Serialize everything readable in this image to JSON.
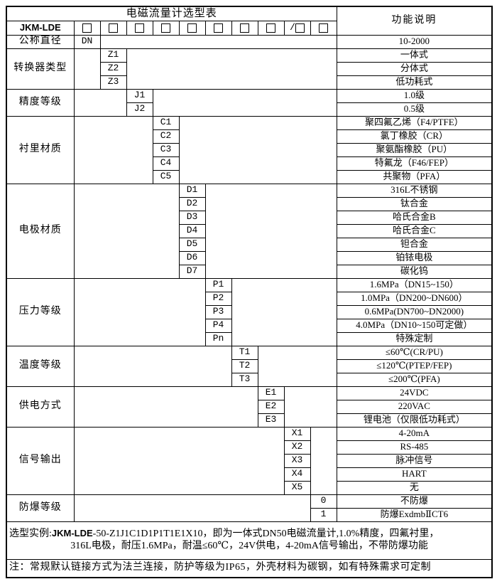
{
  "title": "电磁流量计选型表",
  "function_header": "功能说明",
  "model_row": {
    "prefix": "JKM-LDE",
    "slots": [
      "",
      "",
      "",
      "",
      "",
      "",
      "",
      "",
      "/",
      ""
    ]
  },
  "sections": [
    {
      "label": "公称直径",
      "col": 1,
      "codes": [
        {
          "code": "DN",
          "desc": "10-2000"
        }
      ]
    },
    {
      "label": "转换器类型",
      "col": 2,
      "codes": [
        {
          "code": "Z1",
          "desc": "一体式"
        },
        {
          "code": "Z2",
          "desc": "分体式"
        },
        {
          "code": "Z3",
          "desc": "低功耗式"
        }
      ]
    },
    {
      "label": "精度等级",
      "col": 3,
      "codes": [
        {
          "code": "J1",
          "desc": "1.0级"
        },
        {
          "code": "J2",
          "desc": "0.5级"
        }
      ]
    },
    {
      "label": "衬里材质",
      "col": 4,
      "codes": [
        {
          "code": "C1",
          "desc": "聚四氟乙烯（F4/PTFE）"
        },
        {
          "code": "C2",
          "desc": "氯丁橡胶（CR）"
        },
        {
          "code": "C3",
          "desc": "聚氨酯橡胶（PU）"
        },
        {
          "code": "C4",
          "desc": "特氟龙（F46/FEP）"
        },
        {
          "code": "C5",
          "desc": "共聚物（PFA）"
        }
      ]
    },
    {
      "label": "电极材质",
      "col": 5,
      "codes": [
        {
          "code": "D1",
          "desc": "316L不锈钢"
        },
        {
          "code": "D2",
          "desc": "钛合金"
        },
        {
          "code": "D3",
          "desc": "哈氏合金B"
        },
        {
          "code": "D4",
          "desc": "哈氏合金C"
        },
        {
          "code": "D5",
          "desc": "钽合金"
        },
        {
          "code": "D6",
          "desc": "铂铱电极"
        },
        {
          "code": "D7",
          "desc": "碳化钨"
        }
      ]
    },
    {
      "label": "压力等级",
      "col": 6,
      "codes": [
        {
          "code": "P1",
          "desc": "1.6MPa（DN15~150）"
        },
        {
          "code": "P2",
          "desc": "1.0MPa（DN200~DN600）"
        },
        {
          "code": "P3",
          "desc": "0.6MPa(DN700~DN2000)"
        },
        {
          "code": "P4",
          "desc": "4.0MPa（DN10~150可定做）"
        },
        {
          "code": "Pn",
          "desc": "特殊定制"
        }
      ]
    },
    {
      "label": "温度等级",
      "col": 7,
      "codes": [
        {
          "code": "T1",
          "desc": "≤60℃(CR/PU)"
        },
        {
          "code": "T2",
          "desc": "≤120℃(PTEP/FEP)"
        },
        {
          "code": "T3",
          "desc": "≤200℃(PFA)"
        }
      ]
    },
    {
      "label": "供电方式",
      "col": 8,
      "codes": [
        {
          "code": "E1",
          "desc": "24VDC"
        },
        {
          "code": "E2",
          "desc": "220VAC"
        },
        {
          "code": "E3",
          "desc": "锂电池（仅限低功耗式）"
        }
      ]
    },
    {
      "label": "信号输出",
      "col": 9,
      "codes": [
        {
          "code": "X1",
          "desc": "4-20mA"
        },
        {
          "code": "X2",
          "desc": "RS-485"
        },
        {
          "code": "X3",
          "desc": "脉冲信号"
        },
        {
          "code": "X4",
          "desc": "HART"
        },
        {
          "code": "X5",
          "desc": "无"
        }
      ]
    },
    {
      "label": "防爆等级",
      "col": 10,
      "codes": [
        {
          "code": "0",
          "desc": "不防爆"
        },
        {
          "code": "1",
          "desc": "防爆ExdmbⅡCT6"
        }
      ]
    }
  ],
  "example": {
    "label": "选型实例:",
    "model": "JKM-LDE",
    "line1_rest": "-50-Z1J1C1D1P1T1E1X10，即为一体式DN50电磁流量计,1.0%精度，四氟衬里，",
    "line2": "316L电极，耐压1.6MPa，耐温≤60℃，24V供电，4-20mA信号输出，不带防爆功能"
  },
  "note": "注：常规默认链接方式为法兰连接，防护等级为IP65，外壳材料为碳钢，如有特殊需求可定制"
}
